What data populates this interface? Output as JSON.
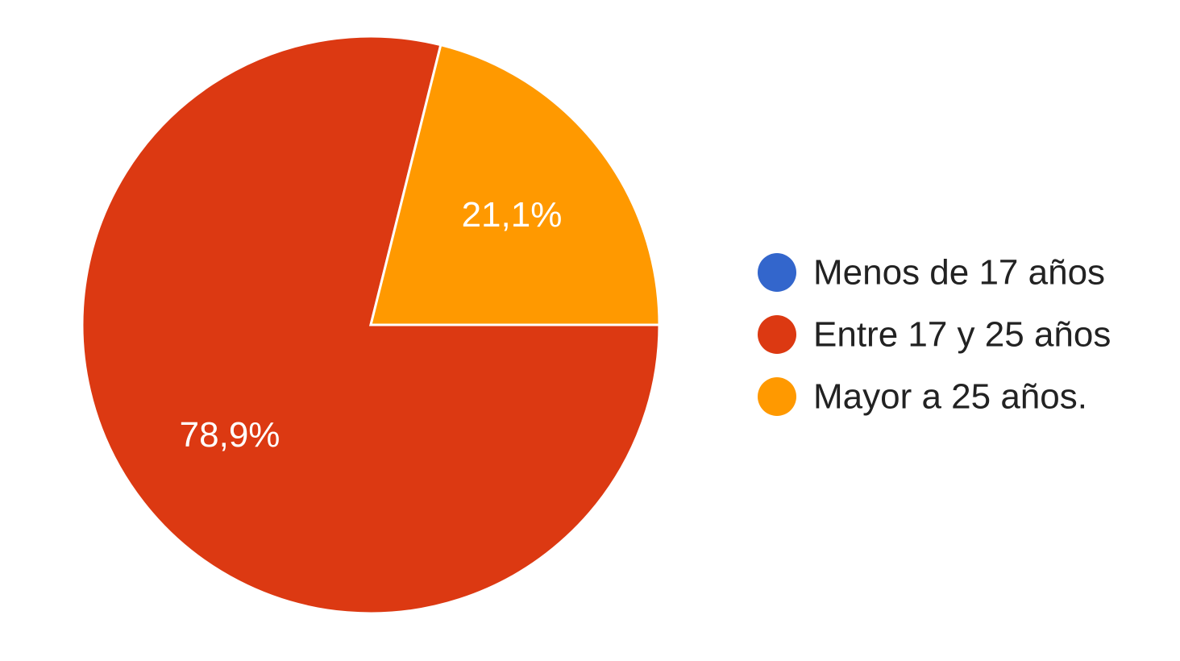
{
  "chart_data": {
    "type": "pie",
    "categories": [
      "Menos de 17 años",
      "Entre 17 y 25 años",
      "Mayor a 25 años."
    ],
    "values": [
      0,
      78.9,
      21.1
    ],
    "data_labels": [
      "",
      "78,9%",
      "21,1%"
    ],
    "colors": [
      "#3366cc",
      "#dc3912",
      "#ff9900"
    ],
    "legend_position": "right",
    "title": ""
  }
}
